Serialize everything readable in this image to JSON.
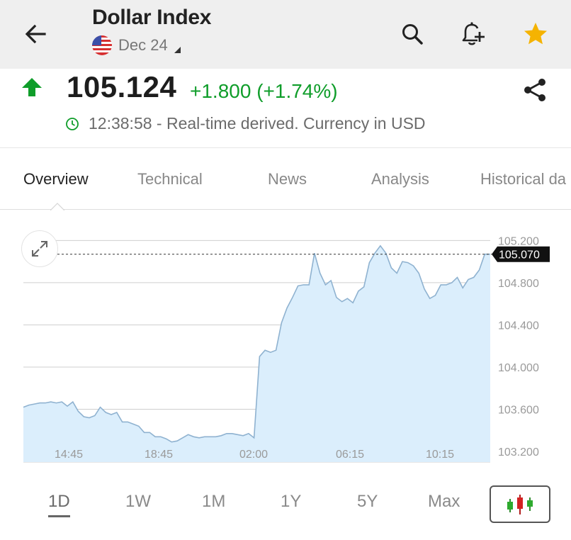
{
  "header": {
    "title": "Dollar Index",
    "contract": "Dec 24",
    "icons": [
      "back-arrow-icon",
      "us-flag-icon",
      "search-icon",
      "add-alert-bell-icon",
      "star-icon"
    ],
    "star_color": "#f5b301"
  },
  "quote": {
    "price": "105.124",
    "change": "+1.800 (+1.74%)",
    "time_status": "12:38:58 - Real-time derived. Currency in USD",
    "direction": "up",
    "up_color": "#0f9d2a"
  },
  "tabs": [
    {
      "label": "Overview",
      "active": true
    },
    {
      "label": "Technical",
      "active": false
    },
    {
      "label": "News",
      "active": false
    },
    {
      "label": "Analysis",
      "active": false
    },
    {
      "label": "Historical da",
      "active": false
    }
  ],
  "chart_data": {
    "type": "area",
    "x_tick_labels": [
      "14:45",
      "18:45",
      "02:00",
      "06:15",
      "10:15"
    ],
    "y_tick_labels": [
      "105.200",
      "104.800",
      "104.400",
      "104.000",
      "103.600",
      "103.200"
    ],
    "y_ticks": [
      105.2,
      104.8,
      104.4,
      104.0,
      103.6,
      103.2
    ],
    "ylim": [
      103.1,
      105.35
    ],
    "current_value_label": "105.070",
    "current_value": 105.07,
    "line_color": "#8fb2d0",
    "fill_color": "#dbeefc",
    "grid": true,
    "values": [
      103.62,
      103.64,
      103.65,
      103.66,
      103.66,
      103.67,
      103.66,
      103.67,
      103.63,
      103.67,
      103.58,
      103.53,
      103.52,
      103.54,
      103.62,
      103.57,
      103.55,
      103.57,
      103.48,
      103.48,
      103.46,
      103.44,
      103.38,
      103.38,
      103.34,
      103.34,
      103.32,
      103.29,
      103.3,
      103.33,
      103.36,
      103.34,
      103.33,
      103.34,
      103.34,
      103.34,
      103.35,
      103.37,
      103.37,
      103.36,
      103.35,
      103.37,
      103.33,
      104.1,
      104.16,
      104.14,
      104.16,
      104.42,
      104.56,
      104.66,
      104.77,
      104.78,
      104.78,
      105.08,
      104.89,
      104.78,
      104.82,
      104.66,
      104.62,
      104.65,
      104.61,
      104.72,
      104.76,
      104.99,
      105.08,
      105.15,
      105.08,
      104.94,
      104.89,
      105.0,
      104.99,
      104.96,
      104.89,
      104.74,
      104.65,
      104.68,
      104.78,
      104.78,
      104.8,
      104.85,
      104.75,
      104.83,
      104.85,
      104.92,
      105.07,
      105.07
    ]
  },
  "ranges": [
    {
      "label": "1D",
      "active": true
    },
    {
      "label": "1W",
      "active": false
    },
    {
      "label": "1M",
      "active": false
    },
    {
      "label": "1Y",
      "active": false
    },
    {
      "label": "5Y",
      "active": false
    },
    {
      "label": "Max",
      "active": false
    }
  ]
}
